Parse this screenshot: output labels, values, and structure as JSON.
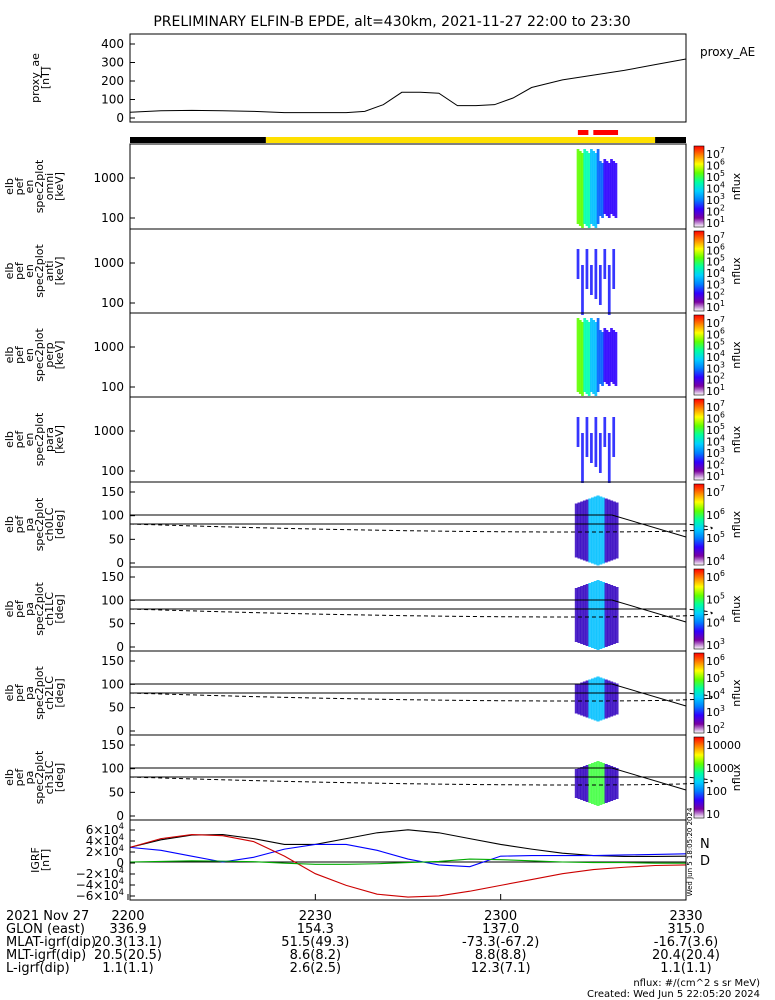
{
  "title": "PRELIMINARY ELFIN-B EPDE, alt=430km, 2021-11-27 22:00 to 23:30",
  "chart_data": {
    "type": "line",
    "panels": [
      {
        "id": "proxy_ae",
        "ylabel": [
          "proxy_ae",
          "[nT]"
        ],
        "legend": "proxy_AE",
        "yticks": [
          "400",
          "300",
          "200",
          "100",
          "0"
        ],
        "ylim": [
          0,
          420
        ],
        "x": [
          0,
          5,
          10,
          15,
          20,
          25,
          30,
          35,
          38,
          41,
          44,
          47,
          50,
          53,
          56,
          59,
          62,
          65,
          70,
          75,
          80,
          85,
          90
        ],
        "values": [
          30,
          38,
          40,
          38,
          35,
          28,
          28,
          28,
          35,
          70,
          135,
          135,
          130,
          65,
          65,
          70,
          105,
          160,
          200,
          225,
          250,
          280,
          310
        ],
        "colorbar_label": ""
      },
      {
        "id": "en_omni",
        "ylabel": [
          "elb",
          "pef",
          "en",
          "spec2plot",
          "omni",
          "[keV]"
        ],
        "yticks": [
          "1000",
          "100"
        ],
        "colorbar_ticks": [
          "10^7",
          "10^6",
          "10^5",
          "10^4",
          "10^3",
          "10^2",
          "10^1"
        ],
        "colorbar_label": "nflux"
      },
      {
        "id": "en_anti",
        "ylabel": [
          "elb",
          "pef",
          "en",
          "spec2plot",
          "anti",
          "[keV]"
        ],
        "yticks": [
          "1000",
          "100"
        ],
        "colorbar_ticks": [
          "10^7",
          "10^6",
          "10^5",
          "10^4",
          "10^3",
          "10^2",
          "10^1"
        ],
        "colorbar_label": "nflux"
      },
      {
        "id": "en_perp",
        "ylabel": [
          "elb",
          "pef",
          "en",
          "spec2plot",
          "perp",
          "[keV]"
        ],
        "yticks": [
          "1000",
          "100"
        ],
        "colorbar_ticks": [
          "10^7",
          "10^6",
          "10^5",
          "10^4",
          "10^3",
          "10^2",
          "10^1"
        ],
        "colorbar_label": "nflux"
      },
      {
        "id": "en_para",
        "ylabel": [
          "elb",
          "pef",
          "en",
          "spec2plot",
          "para",
          "[keV]"
        ],
        "yticks": [
          "1000",
          "100"
        ],
        "colorbar_ticks": [
          "10^7",
          "10^6",
          "10^5",
          "10^4",
          "10^3",
          "10^2",
          "10^1"
        ],
        "colorbar_label": "nflux"
      },
      {
        "id": "pa_ch0",
        "ylabel": [
          "elb",
          "pef",
          "pa",
          "spec2plot",
          "ch0LC",
          "[deg]"
        ],
        "yticks": [
          "150",
          "100",
          "50",
          "0"
        ],
        "colorbar_ticks": [
          "10^7",
          "10^6",
          "10^5",
          "10^4"
        ],
        "colorbar_label": "nflux"
      },
      {
        "id": "pa_ch1",
        "ylabel": [
          "elb",
          "pef",
          "pa",
          "spec2plot",
          "ch1LC",
          "[deg]"
        ],
        "yticks": [
          "150",
          "100",
          "50",
          "0"
        ],
        "colorbar_ticks": [
          "10^6",
          "10^5",
          "10^4",
          "10^3"
        ],
        "colorbar_label": "nflux"
      },
      {
        "id": "pa_ch2",
        "ylabel": [
          "elb",
          "pef",
          "pa",
          "spec2plot",
          "ch2LC",
          "[deg]"
        ],
        "yticks": [
          "150",
          "100",
          "50",
          "0"
        ],
        "colorbar_ticks": [
          "10^6",
          "10^5",
          "10^4",
          "10^3",
          "10^2"
        ],
        "colorbar_label": "nflux"
      },
      {
        "id": "pa_ch3",
        "ylabel": [
          "elb",
          "pef",
          "pa",
          "spec2plot",
          "ch3LC",
          "[deg]"
        ],
        "yticks": [
          "150",
          "100",
          "50",
          "0"
        ],
        "colorbar_ticks": [
          "10000",
          "1000",
          "100",
          "10"
        ],
        "colorbar_label": "nflux"
      },
      {
        "id": "igrf",
        "ylabel": [
          "IGRF",
          "[nT]"
        ],
        "yticks": [
          "6×10^4",
          "4×10^4",
          "2×10^4",
          "0",
          "−2×10^4",
          "−4×10^4",
          "−6×10^4"
        ],
        "ylim": [
          -65000,
          65000
        ],
        "x": [
          0,
          5,
          10,
          15,
          20,
          25,
          30,
          35,
          40,
          45,
          50,
          55,
          60,
          65,
          70,
          75,
          80,
          85,
          90
        ],
        "series": [
          {
            "name": "",
            "color": "#000000",
            "values": [
              25000,
              38000,
              46000,
              47000,
              40000,
              30000,
              30000,
              40000,
              50000,
              55000,
              50000,
              40000,
              30000,
              22000,
              15000,
              11000,
              9500,
              9500,
              10000
            ]
          },
          {
            "name": "N",
            "color": "#0000ff",
            "values": [
              25000,
              20000,
              10000,
              0,
              8000,
              22000,
              30000,
              30000,
              20000,
              5000,
              -5000,
              -8000,
              10000,
              11000,
              11000,
              11000,
              12000,
              13000,
              14000
            ]
          },
          {
            "name": "D",
            "color": "#cc0000",
            "values": [
              25000,
              40000,
              47000,
              45000,
              35000,
              10000,
              -20000,
              -40000,
              -55000,
              -60000,
              -58000,
              -50000,
              -40000,
              -30000,
              -20000,
              -13000,
              -9000,
              -6000,
              -5000
            ]
          },
          {
            "name": "",
            "color": "#00aa00",
            "values": [
              0,
              1000,
              2000,
              1500,
              500,
              -2000,
              -4000,
              -4000,
              -3000,
              -1000,
              1000,
              5000,
              4000,
              2000,
              0,
              -1000,
              -1000,
              -2000,
              -2000
            ]
          }
        ],
        "colorbar_label": ""
      }
    ],
    "ephemeris": {
      "xlabels": [
        "2200",
        "2230",
        "2300",
        "2330"
      ],
      "rows": [
        {
          "label": "2021 Nov 27",
          "values": [
            "",
            "",
            "",
            ""
          ]
        },
        {
          "label": "GLON (east)",
          "values": [
            "336.9",
            "154.3",
            "137.0",
            "315.0"
          ]
        },
        {
          "label": "MLAT-igrf(dip)",
          "values": [
            "20.3(13.1)",
            "51.5(49.3)",
            "-73.3(-67.2)",
            "-16.7(3.6)"
          ]
        },
        {
          "label": "MLT-igrf(dip)",
          "values": [
            "20.5(20.5)",
            "8.6(8.2)",
            "8.8(8.8)",
            "20.4(20.4)"
          ]
        },
        {
          "label": "L-igrf(dip)",
          "values": [
            "1.1(1.1)",
            "2.6(2.5)",
            "12.3(7.1)",
            "1.1(1.1)"
          ]
        }
      ]
    },
    "footer": {
      "units": "nflux: #/(cm^2 s sr MeV)",
      "created": "Created: Wed Jun  5 22:05:20 2024",
      "side_stamp": "Wed Jun  5 18:05:20 2024"
    }
  }
}
